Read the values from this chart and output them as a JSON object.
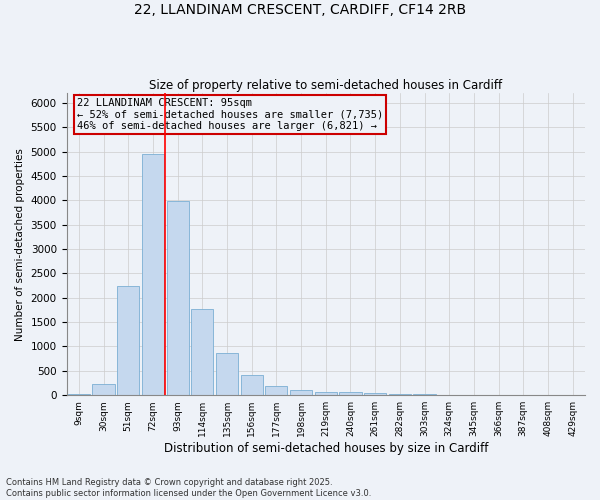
{
  "title_line1": "22, LLANDINAM CRESCENT, CARDIFF, CF14 2RB",
  "title_line2": "Size of property relative to semi-detached houses in Cardiff",
  "xlabel": "Distribution of semi-detached houses by size in Cardiff",
  "ylabel": "Number of semi-detached properties",
  "footnote": "Contains HM Land Registry data © Crown copyright and database right 2025.\nContains public sector information licensed under the Open Government Licence v3.0.",
  "categories": [
    "9sqm",
    "30sqm",
    "51sqm",
    "72sqm",
    "93sqm",
    "114sqm",
    "135sqm",
    "156sqm",
    "177sqm",
    "198sqm",
    "219sqm",
    "240sqm",
    "261sqm",
    "282sqm",
    "303sqm",
    "324sqm",
    "345sqm",
    "366sqm",
    "387sqm",
    "408sqm",
    "429sqm"
  ],
  "values": [
    30,
    230,
    2250,
    4950,
    3980,
    1760,
    860,
    420,
    185,
    110,
    65,
    60,
    55,
    30,
    20,
    10,
    5,
    5,
    3,
    3,
    3
  ],
  "bar_color": "#c5d8ee",
  "bar_edge_color": "#7bafd4",
  "prop_line_index": 3.5,
  "annotation_title": "22 LLANDINAM CRESCENT: 95sqm",
  "annotation_line2": "← 52% of semi-detached houses are smaller (7,735)",
  "annotation_line3": "46% of semi-detached houses are larger (6,821) →",
  "annotation_box_color": "#cc0000",
  "ylim_max": 6200,
  "yticks": [
    0,
    500,
    1000,
    1500,
    2000,
    2500,
    3000,
    3500,
    4000,
    4500,
    5000,
    5500,
    6000
  ],
  "grid_color": "#cccccc",
  "background_color": "#eef2f8"
}
